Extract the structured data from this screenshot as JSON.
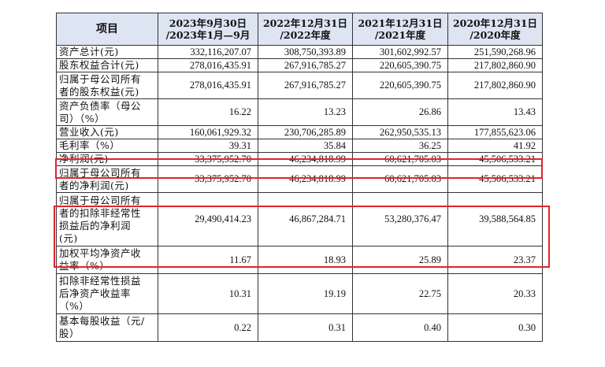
{
  "columns": {
    "item": "项目",
    "c1": [
      "2023年9月30日",
      "/2023年1月—9月"
    ],
    "c2": [
      "2022年12月31日",
      "/2022年度"
    ],
    "c3": [
      "2021年12月31日",
      "/2021年度"
    ],
    "c4": [
      "2020年12月31日",
      "/2020年度"
    ]
  },
  "rows": [
    {
      "label": [
        "资产总计(元)"
      ],
      "values": [
        "332,116,207.07",
        "308,750,393.89",
        "301,602,992.57",
        "251,590,268.96"
      ]
    },
    {
      "label": [
        "股东权益合计(元)"
      ],
      "values": [
        "278,016,435.91",
        "267,916,785.27",
        "220,605,390.75",
        "217,802,860.90"
      ]
    },
    {
      "label": [
        "归属于母公司所有",
        "者的股东权益(元)"
      ],
      "values": [
        "278,016,435.91",
        "267,916,785.27",
        "220,605,390.75",
        "217,802,860.90"
      ]
    },
    {
      "label": [
        "资产负债率（母公",
        "司）（%）"
      ],
      "values": [
        "16.22",
        "13.23",
        "26.86",
        "13.43"
      ]
    },
    {
      "label": [
        "营业收入(元)"
      ],
      "values": [
        "160,061,929.32",
        "230,706,285.89",
        "262,950,535.13",
        "177,855,623.06"
      ]
    },
    {
      "label": [
        "毛利率（%）"
      ],
      "values": [
        "39.31",
        "35.84",
        "36.25",
        "41.92"
      ]
    },
    {
      "label": [
        "净利润(元)"
      ],
      "values": [
        "33,375,952.70",
        "46,234,818.99",
        "60,621,705.03",
        "45,506,533.21"
      ]
    },
    {
      "label": [
        "归属于母公司所有",
        "者的净利润(元)"
      ],
      "values": [
        "33,375,952.70",
        "46,234,818.99",
        "60,621,705.03",
        "45,506,533.21"
      ]
    },
    {
      "label": [
        "归属于母公司所有",
        "者的扣除非经常性",
        "损益后的净利润",
        "(元)"
      ],
      "values": [
        "29,490,414.23",
        "46,867,284.71",
        "53,280,376.47",
        "39,588,564.85"
      ]
    },
    {
      "label": [
        "加权平均净资产收",
        "益率（%）"
      ],
      "values": [
        "11.67",
        "18.93",
        "25.89",
        "23.37"
      ]
    },
    {
      "label": [
        "扣除非经常性损益",
        "后净资产收益率",
        "（%）"
      ],
      "values": [
        "10.31",
        "19.19",
        "22.75",
        "20.33"
      ]
    },
    {
      "label": [
        "基本每股收益（元/",
        "股）"
      ],
      "values": [
        "0.22",
        "0.31",
        "0.40",
        "0.30"
      ]
    }
  ],
  "highlight_color": "#e0242c"
}
